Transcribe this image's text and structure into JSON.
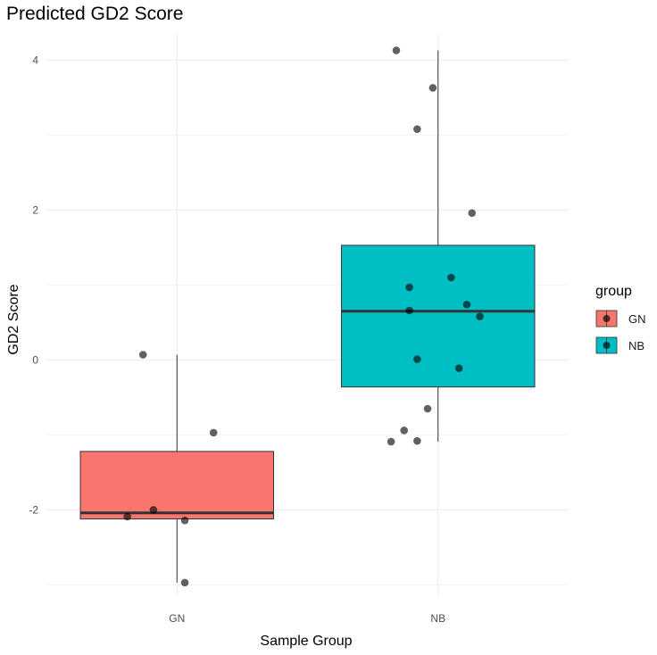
{
  "chart_data": {
    "type": "boxplot",
    "title": "Predicted GD2 Score",
    "xlabel": "Sample Group",
    "ylabel": "GD2 Score",
    "categories": [
      "GN",
      "NB"
    ],
    "ylim": [
      -3.15,
      4.35
    ],
    "y_ticks": [
      -2,
      0,
      2,
      4
    ],
    "grid": true,
    "legend": {
      "title": "group",
      "position": "right",
      "entries": [
        {
          "label": "GN",
          "color": "#F8766D"
        },
        {
          "label": "NB",
          "color": "#00BFC4"
        }
      ]
    },
    "boxes": [
      {
        "group": "GN",
        "color": "#F8766D",
        "whisker_low": -2.97,
        "q1": -2.12,
        "median": -2.04,
        "q3": -1.22,
        "whisker_high": 0.07
      },
      {
        "group": "NB",
        "color": "#00BFC4",
        "whisker_low": -1.09,
        "q1": -0.36,
        "median": 0.65,
        "q3": 1.53,
        "whisker_high": 4.13
      }
    ],
    "points": [
      {
        "group": "GN",
        "x_jitter": -0.13,
        "y": 0.07
      },
      {
        "group": "GN",
        "x_jitter": 0.14,
        "y": -0.97
      },
      {
        "group": "GN",
        "x_jitter": -0.09,
        "y": -2.0
      },
      {
        "group": "GN",
        "x_jitter": -0.19,
        "y": -2.09
      },
      {
        "group": "GN",
        "x_jitter": 0.03,
        "y": -2.14
      },
      {
        "group": "GN",
        "x_jitter": 0.03,
        "y": -2.97
      },
      {
        "group": "NB",
        "x_jitter": -0.16,
        "y": 4.13
      },
      {
        "group": "NB",
        "x_jitter": -0.02,
        "y": 3.63
      },
      {
        "group": "NB",
        "x_jitter": -0.08,
        "y": 3.08
      },
      {
        "group": "NB",
        "x_jitter": 0.13,
        "y": 1.96
      },
      {
        "group": "NB",
        "x_jitter": 0.05,
        "y": 1.1
      },
      {
        "group": "NB",
        "x_jitter": -0.11,
        "y": 0.97
      },
      {
        "group": "NB",
        "x_jitter": 0.11,
        "y": 0.74
      },
      {
        "group": "NB",
        "x_jitter": -0.11,
        "y": 0.66
      },
      {
        "group": "NB",
        "x_jitter": 0.16,
        "y": 0.58
      },
      {
        "group": "NB",
        "x_jitter": -0.08,
        "y": 0.01
      },
      {
        "group": "NB",
        "x_jitter": 0.08,
        "y": -0.11
      },
      {
        "group": "NB",
        "x_jitter": -0.04,
        "y": -0.65
      },
      {
        "group": "NB",
        "x_jitter": -0.13,
        "y": -0.94
      },
      {
        "group": "NB",
        "x_jitter": -0.08,
        "y": -1.08
      },
      {
        "group": "NB",
        "x_jitter": -0.18,
        "y": -1.09
      }
    ]
  }
}
